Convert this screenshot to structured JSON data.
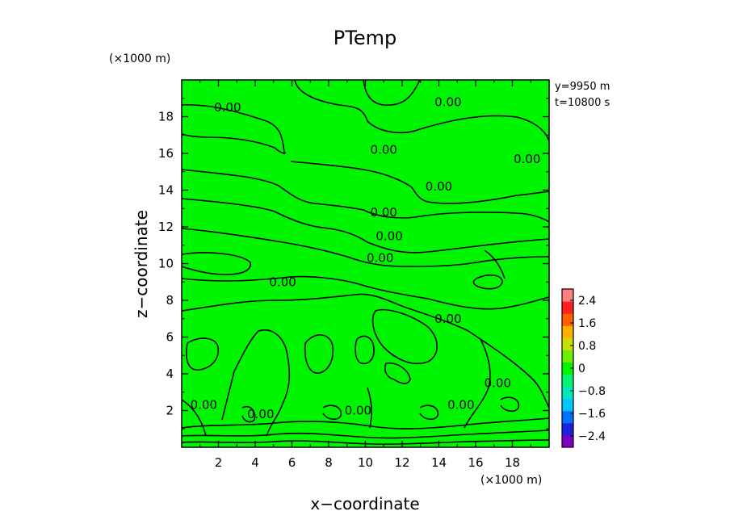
{
  "chart_data": {
    "type": "contour",
    "title": "PTemp",
    "xlabel": "x−coordinate",
    "ylabel": "z−coordinate",
    "x_unit": "(×1000 m)",
    "y_unit": "(×1000 m)",
    "xlim": [
      0,
      20
    ],
    "ylim": [
      0,
      20
    ],
    "x_ticks": [
      2,
      4,
      6,
      8,
      10,
      12,
      14,
      16,
      18
    ],
    "y_ticks": [
      2,
      4,
      6,
      8,
      10,
      12,
      14,
      16,
      18
    ],
    "annotations": [
      "y=9950  m",
      "t=10800  s"
    ],
    "contour_label": "0.00",
    "contour_label_positions": [
      {
        "x": 2.5,
        "y": 18.5
      },
      {
        "x": 14.5,
        "y": 18.8
      },
      {
        "x": 11.0,
        "y": 16.2
      },
      {
        "x": 18.8,
        "y": 15.7
      },
      {
        "x": 14.0,
        "y": 14.2
      },
      {
        "x": 11.0,
        "y": 12.8
      },
      {
        "x": 11.3,
        "y": 11.5
      },
      {
        "x": 10.8,
        "y": 10.3
      },
      {
        "x": 5.5,
        "y": 9.0
      },
      {
        "x": 14.5,
        "y": 7.0
      },
      {
        "x": 17.2,
        "y": 3.5
      },
      {
        "x": 15.2,
        "y": 2.3
      },
      {
        "x": 1.2,
        "y": 2.3
      },
      {
        "x": 4.3,
        "y": 1.8
      },
      {
        "x": 9.6,
        "y": 2.0
      }
    ],
    "field_color": "#00f500",
    "colorbar": {
      "ticks": [
        "2.4",
        "1.6",
        "0.8",
        "0",
        "−0.8",
        "−1.6",
        "−2.4"
      ],
      "range": [
        -2.8,
        2.8
      ],
      "colors": [
        "#7f00bf",
        "#2020e0",
        "#0070ff",
        "#00c8ff",
        "#00e8c0",
        "#00f570",
        "#00f500",
        "#70ee00",
        "#c8e000",
        "#ffb000",
        "#ff6000",
        "#ff2020",
        "#ff8080"
      ]
    }
  }
}
